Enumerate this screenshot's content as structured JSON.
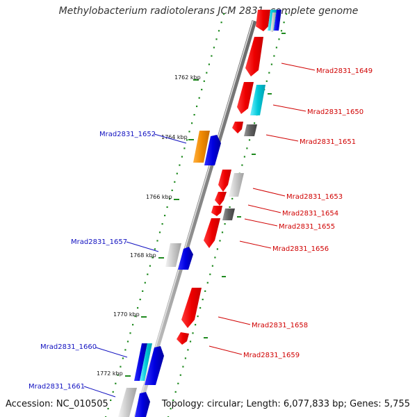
{
  "title": "Methylobacterium radiotolerans JCM 2831, complete genome",
  "footer": {
    "accession": "Accession: NC_010505",
    "summary": "Topology: circular; Length: 6,077,833 bp; Genes: 5,755"
  },
  "colors": {
    "backbone": "#8a8a8a",
    "tick_dots": "#1f8a1f",
    "tick_major": "#1f8a1f",
    "label_forward": "#1010c0",
    "label_reverse": "#d00000",
    "gene_red": "#ee0000",
    "gene_blue": "#0000e0",
    "gene_cyan": "#00c8d8",
    "gene_orange": "#f08a00",
    "gene_gray": "#c0c0c0",
    "gene_dark": "#606060"
  },
  "axis_ticks": [
    {
      "label": "1762 kbp"
    },
    {
      "label": "1764 kbp"
    },
    {
      "label": "1766 kbp"
    },
    {
      "label": "1768 kbp"
    },
    {
      "label": "1770 kbp"
    },
    {
      "label": "1772 kbp"
    }
  ],
  "genes": [
    {
      "name": "Mrad2831_1649",
      "strand": "reverse",
      "color": "gene_red"
    },
    {
      "name": "Mrad2831_1650",
      "strand": "reverse",
      "color": "gene_red"
    },
    {
      "name": "Mrad2831_1651",
      "strand": "reverse",
      "color": "gene_dark"
    },
    {
      "name": "Mrad2831_1652",
      "strand": "forward",
      "color": "gene_orange"
    },
    {
      "name": "Mrad2831_1653",
      "strand": "reverse",
      "color": "gene_red"
    },
    {
      "name": "Mrad2831_1654",
      "strand": "reverse",
      "color": "gene_red"
    },
    {
      "name": "Mrad2831_1655",
      "strand": "reverse",
      "color": "gene_dark"
    },
    {
      "name": "Mrad2831_1656",
      "strand": "reverse",
      "color": "gene_red"
    },
    {
      "name": "Mrad2831_1657",
      "strand": "forward",
      "color": "gene_gray"
    },
    {
      "name": "Mrad2831_1658",
      "strand": "reverse",
      "color": "gene_red"
    },
    {
      "name": "Mrad2831_1659",
      "strand": "reverse",
      "color": "gene_red"
    },
    {
      "name": "Mrad2831_1660",
      "strand": "forward",
      "color": "gene_blue"
    },
    {
      "name": "Mrad2831_1661",
      "strand": "forward",
      "color": "gene_gray"
    }
  ]
}
